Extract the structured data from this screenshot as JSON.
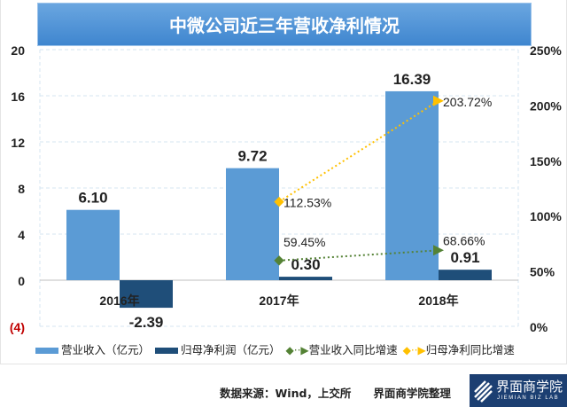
{
  "chart_data": {
    "type": "bar",
    "title": "中微公司近三年营收净利情况",
    "categories": [
      "2016年",
      "2017年",
      "2018年"
    ],
    "y_left": {
      "ylim": [
        -4,
        20
      ],
      "ticks": [
        -4,
        0,
        4,
        8,
        12,
        16,
        20
      ],
      "tick_labels": [
        "(4)",
        "0",
        "4",
        "8",
        "12",
        "16",
        "20"
      ]
    },
    "y_right": {
      "ylim": [
        0,
        250
      ],
      "ticks": [
        0,
        50,
        100,
        150,
        200,
        250
      ],
      "tick_labels": [
        "0%",
        "50%",
        "100%",
        "150%",
        "200%",
        "250%"
      ]
    },
    "series": [
      {
        "name": "营业收入（亿元）",
        "type": "bar",
        "axis": "left",
        "color": "#5b9bd5",
        "values": [
          6.1,
          9.72,
          16.39
        ],
        "labels": [
          "6.10",
          "9.72",
          "16.39"
        ]
      },
      {
        "name": "归母净利润（亿元）",
        "type": "bar",
        "axis": "left",
        "color": "#1f4e79",
        "values": [
          -2.39,
          0.3,
          0.91
        ],
        "labels": [
          "-2.39",
          "0.30",
          "0.91"
        ]
      },
      {
        "name": "营业收入同比增速",
        "type": "line",
        "axis": "right",
        "color": "#548235",
        "values": [
          null,
          59.45,
          68.66
        ],
        "labels": [
          "",
          "59.45%",
          "68.66%"
        ]
      },
      {
        "name": "归母净利同比增速",
        "type": "line",
        "axis": "right",
        "color": "#ffc000",
        "values": [
          null,
          112.53,
          203.72
        ],
        "labels": [
          "",
          "112.53%",
          "203.72%"
        ]
      }
    ],
    "grid": true,
    "legend": "bottom"
  },
  "footer": {
    "source": "数据来源：Wind，上交所　　界面商学院整理",
    "logo_text": "界面商学院",
    "logo_sub": "JIEMIAN BIZ LAB"
  }
}
